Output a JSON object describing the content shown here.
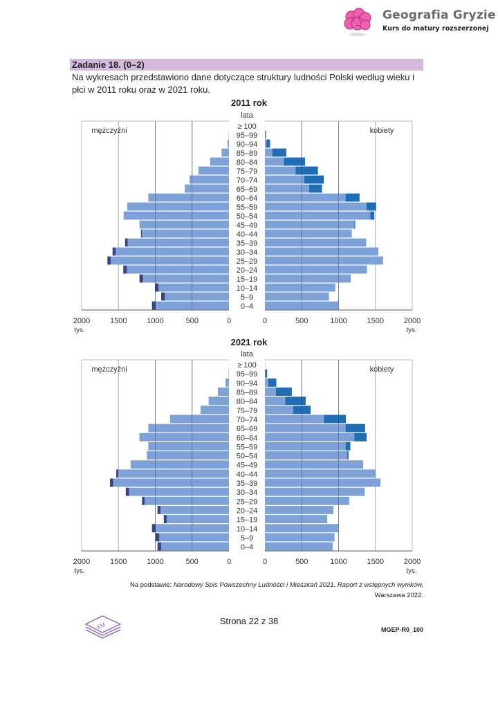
{
  "header": {
    "brand_title": "Geografia Gryzie",
    "brand_subtitle": "Kurs do matury rozszerzonej",
    "logo_icon": "pink-brain-icon"
  },
  "task": {
    "title": "Zadanie 18. (0–2)",
    "text": "Na wykresach przedstawiono dane dotyczące struktury ludności Polski według wieku i płci w 2011 roku oraz w 2021 roku."
  },
  "chart_data": [
    {
      "type": "bar",
      "subtype": "population-pyramid",
      "title": "2011 rok",
      "age_label": "lata",
      "unit_label": "tys.",
      "categories": [
        "0–4",
        "5–9",
        "10–14",
        "15–19",
        "20–24",
        "25–29",
        "30–34",
        "35–39",
        "40–44",
        "45–49",
        "50–54",
        "55–59",
        "60–64",
        "65–69",
        "70–74",
        "75–79",
        "80–84",
        "85–89",
        "90–94",
        "95–99",
        "≥ 100"
      ],
      "series": [
        {
          "name": "mężczyźni",
          "side": "left",
          "values": [
            1045,
            920,
            1005,
            1215,
            1435,
            1650,
            1580,
            1410,
            1195,
            1215,
            1430,
            1380,
            1095,
            600,
            535,
            415,
            255,
            100,
            20,
            3,
            0
          ]
        },
        {
          "name": "kobiety",
          "side": "right",
          "values": [
            995,
            870,
            955,
            1165,
            1385,
            1605,
            1540,
            1375,
            1180,
            1225,
            1485,
            1510,
            1285,
            775,
            800,
            720,
            545,
            290,
            70,
            15,
            0
          ]
        }
      ],
      "xlim": [
        0,
        2000
      ],
      "ticks": [
        "0",
        "500",
        "1000",
        "1500",
        "2000"
      ],
      "grid": true,
      "colors": {
        "base": "#7ea2d8",
        "male_excess": "#3a4585",
        "female_excess": "#1f6db5"
      }
    },
    {
      "type": "bar",
      "subtype": "population-pyramid",
      "title": "2021 rok",
      "age_label": "lata",
      "unit_label": "tys.",
      "categories": [
        "0–4",
        "5–9",
        "10–14",
        "15–19",
        "20–24",
        "25–29",
        "30–34",
        "35–39",
        "40–44",
        "45–49",
        "50–54",
        "55–59",
        "60–64",
        "65–69",
        "70–74",
        "75–79",
        "80–84",
        "85–89",
        "90–94",
        "95–99",
        "≥ 100"
      ],
      "series": [
        {
          "name": "mężczyźni",
          "side": "left",
          "values": [
            970,
            995,
            1045,
            885,
            970,
            1180,
            1400,
            1615,
            1530,
            1335,
            1115,
            1095,
            1215,
            1095,
            800,
            385,
            275,
            150,
            45,
            5,
            0
          ]
        },
        {
          "name": "kobiety",
          "side": "right",
          "values": [
            920,
            945,
            995,
            845,
            930,
            1145,
            1355,
            1570,
            1505,
            1335,
            1135,
            1160,
            1380,
            1360,
            1100,
            620,
            555,
            365,
            155,
            30,
            2
          ]
        }
      ],
      "xlim": [
        0,
        2000
      ],
      "ticks": [
        "0",
        "500",
        "1000",
        "1500",
        "2000"
      ],
      "grid": true,
      "colors": {
        "base": "#7ea2d8",
        "male_excess": "#3a4585",
        "female_excess": "#1f6db5"
      }
    }
  ],
  "source": {
    "prefix": "Na podstawie: ",
    "title": "Narodowy Spis Powszechny Ludności i Mieszkań 2021. Raport z wstępnych wyników,",
    "place": "Warszawa 2022."
  },
  "footer": {
    "page": "Strona 22 z 38",
    "code": "MGEP-R0_100",
    "logo_icon": "cke-stacked-pages-icon"
  }
}
